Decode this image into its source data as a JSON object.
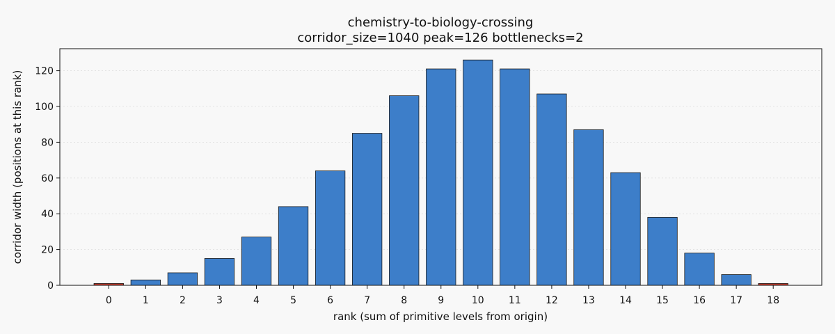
{
  "chart_data": {
    "type": "bar",
    "title": "chemistry-to-biology-crossing",
    "subtitle": "corridor_size=1040  peak=126  bottlenecks=2",
    "xlabel": "rank (sum of primitive levels from origin)",
    "ylabel": "corridor width (positions at this rank)",
    "categories": [
      "0",
      "1",
      "2",
      "3",
      "4",
      "5",
      "6",
      "7",
      "8",
      "9",
      "10",
      "11",
      "12",
      "13",
      "14",
      "15",
      "16",
      "17",
      "18"
    ],
    "values": [
      1,
      3,
      7,
      15,
      27,
      44,
      64,
      85,
      106,
      121,
      126,
      121,
      107,
      87,
      63,
      38,
      18,
      6,
      1
    ],
    "bottleneck_indices": [
      0,
      18
    ],
    "ylim": [
      0,
      132.3
    ],
    "yticks": [
      0,
      20,
      40,
      60,
      80,
      100,
      120
    ],
    "grid": "horizontal, dotted",
    "colors": {
      "bar": "#3d7ec9",
      "bottleneck_bar": "#c0392b",
      "edge": "#1a1a1a",
      "grid": "#dddddd",
      "background": "#f8f8f8"
    }
  }
}
